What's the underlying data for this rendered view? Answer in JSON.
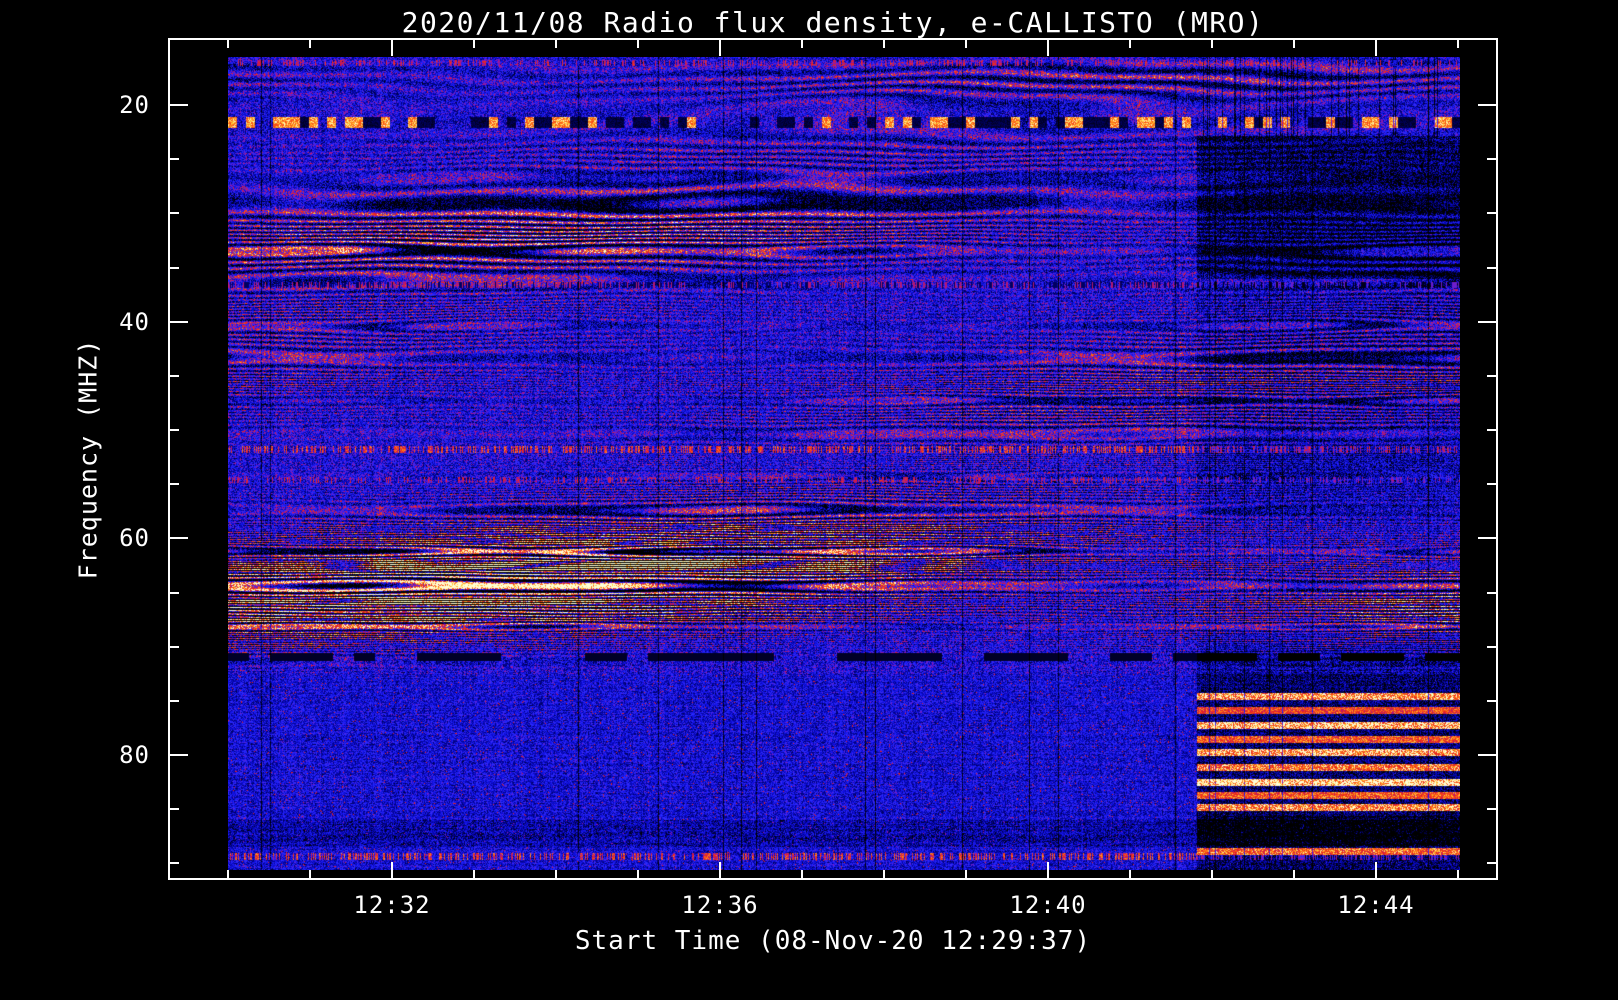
{
  "title": "2020/11/08  Radio flux density, e-CALLISTO (MRO)",
  "chart_data": {
    "type": "heatmap",
    "title": "2020/11/08  Radio flux density, e-CALLISTO (MRO)",
    "xlabel": "Start Time (08-Nov-20 12:29:37)",
    "ylabel": "Frequency (MHZ)",
    "instrument": "e-CALLISTO (MRO)",
    "date": "2020/11/08",
    "start_time": "12:29:37",
    "x_ticks": [
      {
        "label": "12:32",
        "minute": 32
      },
      {
        "label": "12:36",
        "minute": 36
      },
      {
        "label": "12:40",
        "minute": 40
      },
      {
        "label": "12:44",
        "minute": 44
      }
    ],
    "x_minor_step_minutes": 1,
    "y_ticks": [
      {
        "label": "20",
        "mhz": 20
      },
      {
        "label": "40",
        "mhz": 40
      },
      {
        "label": "60",
        "mhz": 60
      },
      {
        "label": "80",
        "mhz": 80
      }
    ],
    "y_minor_step_mhz": 5,
    "x_range_minutes": [
      30.0,
      45.03
    ],
    "y_range_mhz": [
      15.57,
      90.6
    ],
    "y_axis_inverted": true,
    "grid": false,
    "legend": "none",
    "colormap": "black-blue-red-yellow",
    "background_color": "#000000",
    "frame_color": "#ffffff",
    "fringe_bands": [
      {
        "center_mhz": 17.6,
        "sigma": 1.3,
        "strength": 0.22
      },
      {
        "center_mhz": 24.5,
        "sigma": 1.6,
        "strength": 0.12
      },
      {
        "center_mhz": 29.0,
        "sigma": 1.4,
        "strength": 0.2
      },
      {
        "center_mhz": 32.8,
        "sigma": 2.2,
        "strength": 0.34
      },
      {
        "center_mhz": 40.0,
        "sigma": 2.6,
        "strength": 0.12
      },
      {
        "center_mhz": 45.3,
        "sigma": 2.4,
        "strength": 0.2
      },
      {
        "center_mhz": 49.5,
        "sigma": 1.5,
        "strength": 0.12
      },
      {
        "center_mhz": 56.5,
        "sigma": 1.8,
        "strength": 0.14
      },
      {
        "center_mhz": 59.5,
        "sigma": 1.5,
        "strength": 0.18
      },
      {
        "center_mhz": 63.6,
        "sigma": 2.3,
        "strength": 0.62
      },
      {
        "center_mhz": 67.2,
        "sigma": 1.2,
        "strength": 0.28
      },
      {
        "center_mhz": 69.5,
        "sigma": 1.0,
        "strength": 0.12
      }
    ],
    "rfi_lines": [
      {
        "mhz": 16.1,
        "style": "faint-red-speckle"
      },
      {
        "mhz": 21.6,
        "style": "bright-dark-dashes"
      },
      {
        "mhz": 36.6,
        "style": "dark-red-speckle"
      },
      {
        "mhz": 51.8,
        "style": "red-speckle"
      },
      {
        "mhz": 54.6,
        "style": "faint-red-speckle"
      },
      {
        "mhz": 71.0,
        "style": "dark-dashes"
      },
      {
        "mhz": 89.4,
        "style": "red-speckle"
      }
    ],
    "right_section": {
      "start_fraction": 0.787,
      "note": "after ~12:42 background darkens; red horizontal streaks appear below ~74 MHz",
      "dark_top_mhz": [
        22.8,
        36.0
      ],
      "dark_band_mhz": [
        85.7,
        88.4
      ],
      "streaks": [
        {
          "mhz": 74.6,
          "strength": 0.8
        },
        {
          "mhz": 75.9,
          "strength": 0.55
        },
        {
          "mhz": 77.3,
          "strength": 0.9
        },
        {
          "mhz": 78.6,
          "strength": 0.6
        },
        {
          "mhz": 79.8,
          "strength": 0.85
        },
        {
          "mhz": 81.2,
          "strength": 0.7
        },
        {
          "mhz": 82.6,
          "strength": 1.0
        },
        {
          "mhz": 83.8,
          "strength": 0.6
        },
        {
          "mhz": 84.9,
          "strength": 0.75
        },
        {
          "mhz": 88.9,
          "strength": 0.65
        }
      ]
    }
  }
}
